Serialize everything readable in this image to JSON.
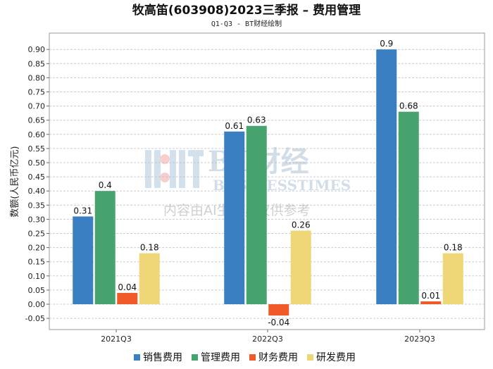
{
  "chart_data": {
    "type": "bar",
    "title": "牧高笛(603908)2023三季报 – 费用管理",
    "subtitle": "Q1-Q3 - BT财经绘制",
    "ylabel": "数额(人民币亿元)",
    "xlabel": "",
    "categories": [
      "2021Q3",
      "2022Q3",
      "2023Q3"
    ],
    "ylim": [
      -0.09,
      0.94
    ],
    "yticks": [
      -0.05,
      0.0,
      0.05,
      0.1,
      0.15,
      0.2,
      0.25,
      0.3,
      0.35,
      0.4,
      0.45,
      0.5,
      0.55,
      0.6,
      0.65,
      0.7,
      0.75,
      0.8,
      0.85,
      0.9
    ],
    "grid": true,
    "legend_position": "bottom",
    "series": [
      {
        "name": "销售费用",
        "color": "#3a7fc1",
        "values": [
          0.31,
          0.61,
          0.9
        ],
        "labels": [
          "0.31",
          "0.61",
          "0.9"
        ]
      },
      {
        "name": "管理费用",
        "color": "#47a46e",
        "values": [
          0.4,
          0.63,
          0.68
        ],
        "labels": [
          "0.4",
          "0.63",
          "0.68"
        ]
      },
      {
        "name": "财务费用",
        "color": "#ef5a28",
        "values": [
          0.04,
          -0.04,
          0.01
        ],
        "labels": [
          "0.04",
          "-0.04",
          "0.01"
        ]
      },
      {
        "name": "研发费用",
        "color": "#efd677",
        "values": [
          0.18,
          0.26,
          0.18
        ],
        "labels": [
          "0.18",
          "0.26",
          "0.18"
        ]
      }
    ]
  },
  "watermark": {
    "brand": "BT财经",
    "brand_en": "BUSINESSTIMES",
    "notice": "内容由AI生成，仅供参考"
  }
}
